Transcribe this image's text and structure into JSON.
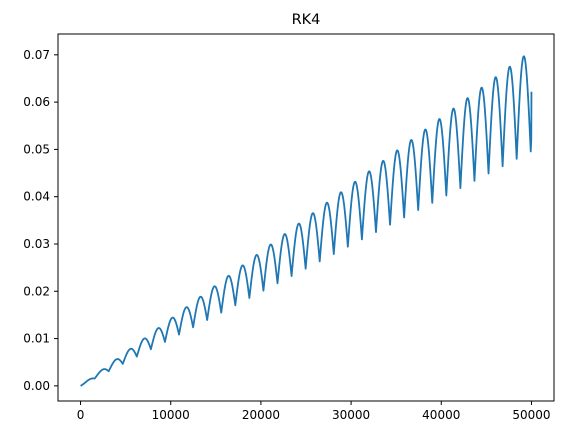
{
  "chart_data": {
    "type": "line",
    "title": "RK4",
    "xlabel": "",
    "ylabel": "",
    "xlim": [
      -2500,
      52500
    ],
    "ylim": [
      -0.0032,
      0.0744
    ],
    "grid": false,
    "legend": "none",
    "x_ticks": [
      0,
      10000,
      20000,
      30000,
      40000,
      50000
    ],
    "x_tick_labels": [
      "0",
      "10000",
      "20000",
      "30000",
      "40000",
      "50000"
    ],
    "y_ticks": [
      0.0,
      0.01,
      0.02,
      0.03,
      0.04,
      0.05,
      0.06,
      0.07
    ],
    "y_tick_labels": [
      "0.00",
      "0.01",
      "0.02",
      "0.03",
      "0.04",
      "0.05",
      "0.06",
      "0.07"
    ],
    "series": [
      {
        "color": "#1f77b4",
        "x_range": [
          0,
          50000
        ],
        "oscillation_period": 1560,
        "envelope_peak_end": 0.0709,
        "trough_depth_ratio": 0.3,
        "final_value": 0.0622
      }
    ]
  }
}
